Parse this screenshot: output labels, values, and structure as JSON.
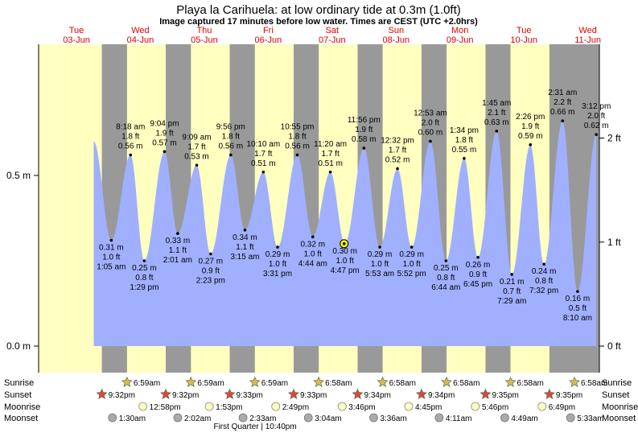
{
  "title": "Playa la Carihuela: at low  ordinary tide at 0.3m (1.0ft)",
  "subtitle": "Image captured 17 minutes before low water. Times are CEST (UTC +2.0hrs)",
  "colors": {
    "day": "#ffffc0",
    "night": "#999999",
    "water": "#a0b0ff",
    "day_label": "#e00000",
    "sun_star": "#d4c040",
    "sunset_star": "#d05030",
    "moonrise": "#ffffc0",
    "moonset": "#aaaaaa",
    "current_marker": "#ffff00"
  },
  "days": [
    {
      "dow": "Tue",
      "date": "03-Jun"
    },
    {
      "dow": "Wed",
      "date": "04-Jun"
    },
    {
      "dow": "Thu",
      "date": "05-Jun"
    },
    {
      "dow": "Fri",
      "date": "06-Jun"
    },
    {
      "dow": "Sat",
      "date": "07-Jun"
    },
    {
      "dow": "Sun",
      "date": "08-Jun"
    },
    {
      "dow": "Mon",
      "date": "09-Jun"
    },
    {
      "dow": "Tue",
      "date": "10-Jun"
    },
    {
      "dow": "Wed",
      "date": "11-Jun"
    }
  ],
  "chart_data": {
    "type": "area",
    "title": "Playa la Carihuela: at low  ordinary tide at 0.3m (1.0ft)",
    "y_left_unit": "m",
    "y_left_ticks": [
      "0.0 m",
      "0.5 m"
    ],
    "y_right_ticks": [
      "0 ft",
      "1 ft",
      "2 ft"
    ],
    "ylim_m": [
      0,
      0.765
    ],
    "current": {
      "time": "Sat 07-Jun 16:30",
      "height_m": 0.3,
      "height_ft": 1.0
    },
    "tides": [
      {
        "day": 0,
        "time": "18:30",
        "time_label": "",
        "m": 0.6,
        "m_label": "",
        "ft_label": ""
      },
      {
        "day": 1,
        "time": "01:05",
        "time_label": "1:05 am",
        "m": 0.31,
        "m_label": "0.31 m",
        "ft_label": "1.0 ft",
        "type": "low"
      },
      {
        "day": 1,
        "time": "08:18",
        "time_label": "8:18 am",
        "m": 0.56,
        "m_label": "0.56 m",
        "ft_label": "1.8 ft",
        "type": "high"
      },
      {
        "day": 1,
        "time": "13:29",
        "time_label": "1:29 pm",
        "m": 0.25,
        "m_label": "0.25 m",
        "ft_label": "0.8 ft",
        "type": "low"
      },
      {
        "day": 1,
        "time": "21:04",
        "time_label": "9:04 pm",
        "m": 0.57,
        "m_label": "0.57 m",
        "ft_label": "1.9 ft",
        "type": "high"
      },
      {
        "day": 2,
        "time": "02:01",
        "time_label": "2:01 am",
        "m": 0.33,
        "m_label": "0.33 m",
        "ft_label": "1.1 ft",
        "type": "low"
      },
      {
        "day": 2,
        "time": "09:09",
        "time_label": "9:09 am",
        "m": 0.53,
        "m_label": "0.53 m",
        "ft_label": "1.7 ft",
        "type": "high"
      },
      {
        "day": 2,
        "time": "14:23",
        "time_label": "2:23 pm",
        "m": 0.27,
        "m_label": "0.27 m",
        "ft_label": "0.9 ft",
        "type": "low"
      },
      {
        "day": 2,
        "time": "21:56",
        "time_label": "9:56 pm",
        "m": 0.56,
        "m_label": "0.56 m",
        "ft_label": "1.8 ft",
        "type": "high"
      },
      {
        "day": 3,
        "time": "03:15",
        "time_label": "3:15 am",
        "m": 0.34,
        "m_label": "0.34 m",
        "ft_label": "1.1 ft",
        "type": "low"
      },
      {
        "day": 3,
        "time": "10:10",
        "time_label": "10:10 am",
        "m": 0.51,
        "m_label": "0.51 m",
        "ft_label": "1.7 ft",
        "type": "high"
      },
      {
        "day": 3,
        "time": "15:31",
        "time_label": "3:31 pm",
        "m": 0.29,
        "m_label": "0.29 m",
        "ft_label": "1.0 ft",
        "type": "low"
      },
      {
        "day": 3,
        "time": "22:55",
        "time_label": "10:55 pm",
        "m": 0.56,
        "m_label": "0.56 m",
        "ft_label": "1.8 ft",
        "type": "high"
      },
      {
        "day": 4,
        "time": "04:44",
        "time_label": "4:44 am",
        "m": 0.32,
        "m_label": "0.32 m",
        "ft_label": "1.0 ft",
        "type": "low"
      },
      {
        "day": 4,
        "time": "11:20",
        "time_label": "11:20 am",
        "m": 0.51,
        "m_label": "0.51 m",
        "ft_label": "1.7 ft",
        "type": "high"
      },
      {
        "day": 4,
        "time": "16:47",
        "time_label": "4:47 pm",
        "m": 0.3,
        "m_label": "0.30 m",
        "ft_label": "1.0 ft",
        "type": "low"
      },
      {
        "day": 4,
        "time": "23:56",
        "time_label": "11:56 pm",
        "m": 0.58,
        "m_label": "0.58 m",
        "ft_label": "1.9 ft",
        "type": "high"
      },
      {
        "day": 5,
        "time": "05:53",
        "time_label": "5:53 am",
        "m": 0.29,
        "m_label": "0.29 m",
        "ft_label": "1.0 ft",
        "type": "low"
      },
      {
        "day": 5,
        "time": "12:32",
        "time_label": "12:32 pm",
        "m": 0.52,
        "m_label": "0.52 m",
        "ft_label": "1.7 ft",
        "type": "high"
      },
      {
        "day": 5,
        "time": "17:52",
        "time_label": "5:52 pm",
        "m": 0.29,
        "m_label": "0.29 m",
        "ft_label": "1.0 ft",
        "type": "low"
      },
      {
        "day": 6,
        "time": "00:53",
        "time_label": "12:53 am",
        "m": 0.6,
        "m_label": "0.60 m",
        "ft_label": "2.0 ft",
        "type": "high"
      },
      {
        "day": 6,
        "time": "06:44",
        "time_label": "6:44 am",
        "m": 0.25,
        "m_label": "0.25 m",
        "ft_label": "0.8 ft",
        "type": "low"
      },
      {
        "day": 6,
        "time": "13:34",
        "time_label": "1:34 pm",
        "m": 0.55,
        "m_label": "0.55 m",
        "ft_label": "1.8 ft",
        "type": "high"
      },
      {
        "day": 6,
        "time": "18:45",
        "time_label": "6:45 pm",
        "m": 0.26,
        "m_label": "0.26 m",
        "ft_label": "0.9 ft",
        "type": "low"
      },
      {
        "day": 7,
        "time": "01:45",
        "time_label": "1:45 am",
        "m": 0.63,
        "m_label": "0.63 m",
        "ft_label": "2.1 ft",
        "type": "high"
      },
      {
        "day": 7,
        "time": "07:29",
        "time_label": "7:29 am",
        "m": 0.21,
        "m_label": "0.21 m",
        "ft_label": "0.7 ft",
        "type": "low"
      },
      {
        "day": 7,
        "time": "14:26",
        "time_label": "2:26 pm",
        "m": 0.59,
        "m_label": "0.59 m",
        "ft_label": "1.9 ft",
        "type": "high"
      },
      {
        "day": 7,
        "time": "19:32",
        "time_label": "7:32 pm",
        "m": 0.24,
        "m_label": "0.24 m",
        "ft_label": "0.8 ft",
        "type": "low"
      },
      {
        "day": 8,
        "time": "02:31",
        "time_label": "2:31 am",
        "m": 0.66,
        "m_label": "0.66 m",
        "ft_label": "2.2 ft",
        "type": "high"
      },
      {
        "day": 8,
        "time": "08:10",
        "time_label": "8:10 am",
        "m": 0.16,
        "m_label": "0.16 m",
        "ft_label": "0.5 ft",
        "type": "low"
      },
      {
        "day": 8,
        "time": "15:12",
        "time_label": "3:12 pm",
        "m": 0.62,
        "m_label": "0.62 m",
        "ft_label": "2.0 ft",
        "type": "high"
      }
    ]
  },
  "rows": {
    "sunrise": {
      "label": "Sunrise",
      "events": [
        {
          "day": 1,
          "time": "06:59",
          "text": "6:59am"
        },
        {
          "day": 2,
          "time": "06:59",
          "text": "6:59am"
        },
        {
          "day": 3,
          "time": "06:59",
          "text": "6:59am"
        },
        {
          "day": 4,
          "time": "06:58",
          "text": "6:58am"
        },
        {
          "day": 5,
          "time": "06:58",
          "text": "6:58am"
        },
        {
          "day": 6,
          "time": "06:58",
          "text": "6:58am"
        },
        {
          "day": 7,
          "time": "06:58",
          "text": "6:58am"
        },
        {
          "day": 8,
          "time": "06:58",
          "text": "6:58am"
        }
      ]
    },
    "sunset": {
      "label": "Sunset",
      "events": [
        {
          "day": 0,
          "time": "21:32",
          "text": "9:32pm"
        },
        {
          "day": 1,
          "time": "21:32",
          "text": "9:32pm"
        },
        {
          "day": 2,
          "time": "21:33",
          "text": "9:33pm"
        },
        {
          "day": 3,
          "time": "21:33",
          "text": "9:33pm"
        },
        {
          "day": 4,
          "time": "21:34",
          "text": "9:34pm"
        },
        {
          "day": 5,
          "time": "21:34",
          "text": "9:34pm"
        },
        {
          "day": 6,
          "time": "21:35",
          "text": "9:35pm"
        },
        {
          "day": 7,
          "time": "21:35",
          "text": "9:35pm"
        }
      ]
    },
    "moonrise": {
      "label": "Moonrise",
      "events": [
        {
          "day": 1,
          "time": "12:58",
          "text": "12:58pm"
        },
        {
          "day": 2,
          "time": "13:53",
          "text": "1:53pm"
        },
        {
          "day": 3,
          "time": "14:49",
          "text": "2:49pm"
        },
        {
          "day": 4,
          "time": "15:46",
          "text": "3:46pm"
        },
        {
          "day": 5,
          "time": "16:45",
          "text": "4:45pm"
        },
        {
          "day": 6,
          "time": "17:46",
          "text": "5:46pm"
        },
        {
          "day": 7,
          "time": "18:49",
          "text": "6:49pm"
        }
      ]
    },
    "moonset": {
      "label": "Moonset",
      "events": [
        {
          "day": 1,
          "time": "01:30",
          "text": "1:30am"
        },
        {
          "day": 2,
          "time": "02:02",
          "text": "2:02am"
        },
        {
          "day": 3,
          "time": "02:33",
          "text": "2:33am"
        },
        {
          "day": 4,
          "time": "03:04",
          "text": "3:04am"
        },
        {
          "day": 5,
          "time": "03:36",
          "text": "3:36am"
        },
        {
          "day": 6,
          "time": "04:11",
          "text": "4:11am"
        },
        {
          "day": 7,
          "time": "04:49",
          "text": "4:49am"
        },
        {
          "day": 8,
          "time": "05:33",
          "text": "5:33am"
        }
      ]
    }
  },
  "moon_phase": {
    "day": 3,
    "time": "22:40",
    "text": "First Quarter | 10:40pm"
  }
}
